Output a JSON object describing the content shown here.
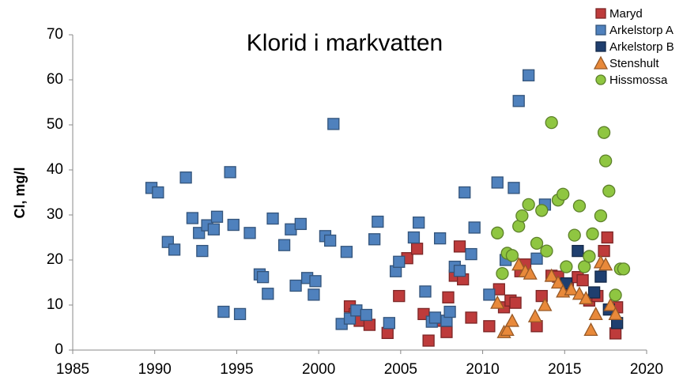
{
  "chart_data": {
    "type": "scatter",
    "title": "Klorid i markvatten",
    "ylabel": "Cl, mg/l",
    "xlim": [
      1985,
      2020
    ],
    "xticks": [
      1985,
      1990,
      1995,
      2000,
      2005,
      2010,
      2015,
      2020
    ],
    "ylim": [
      0,
      70
    ],
    "yticks": [
      0,
      10,
      20,
      30,
      40,
      50,
      60,
      70
    ],
    "grid": false,
    "legend": "top-right",
    "series": [
      {
        "name": "Maryd",
        "color": "#be3b3b",
        "marker": "square",
        "x": [
          2001.9,
          2002.2,
          2002.5,
          2003.1,
          2004.2,
          2004.9,
          2005.4,
          2006.0,
          2006.4,
          2006.7,
          2007.4,
          2007.8,
          2007.9,
          2008.3,
          2008.6,
          2008.8,
          2009.3,
          2010.4,
          2011.0,
          2011.3,
          2011.7,
          2012.0,
          2012.3,
          2012.6,
          2013.3,
          2013.6,
          2014.2,
          2014.6,
          2015.2,
          2015.8,
          2016.1,
          2016.5,
          2017.0,
          2017.4,
          2017.6,
          2018.1,
          2018.2
        ],
        "values": [
          9.7,
          8,
          6.5,
          5.6,
          3.8,
          12,
          20.4,
          22.5,
          8,
          2.1,
          6.5,
          4,
          11.7,
          16.5,
          23,
          15.7,
          7.2,
          5.3,
          13.5,
          9.5,
          11,
          10.5,
          17.5,
          19,
          5.3,
          12,
          16.5,
          16.3,
          14.5,
          16.2,
          15.5,
          11,
          12,
          22,
          25,
          3.7,
          9.5
        ]
      },
      {
        "name": "Arkelstorp A",
        "color": "#4f81bd",
        "marker": "square",
        "x": [
          1989.8,
          1990.2,
          1990.8,
          1991.2,
          1991.9,
          1992.3,
          1992.7,
          1992.9,
          1993.2,
          1993.6,
          1993.8,
          1994.2,
          1994.6,
          1994.8,
          1995.2,
          1995.8,
          1996.4,
          1996.6,
          1996.9,
          1997.2,
          1997.9,
          1998.3,
          1998.6,
          1998.9,
          1999.3,
          1999.7,
          1999.8,
          2000.4,
          2000.7,
          2000.9,
          2001.4,
          2001.7,
          2001.9,
          2002.3,
          2002.9,
          2003.4,
          2003.6,
          2004.3,
          2004.7,
          2004.9,
          2005.8,
          2006.1,
          2006.5,
          2006.9,
          2007.1,
          2007.4,
          2007.8,
          2008.0,
          2008.3,
          2008.6,
          2008.9,
          2009.3,
          2009.5,
          2010.4,
          2010.9,
          2011.4,
          2011.9,
          2012.2,
          2012.8,
          2013.3,
          2013.8
        ],
        "values": [
          36,
          35,
          24,
          22.3,
          38.3,
          29.3,
          26,
          22,
          27.7,
          26.8,
          29.6,
          8.5,
          39.5,
          27.8,
          8,
          26,
          16.8,
          16.2,
          12.5,
          29.2,
          23.3,
          26.8,
          14.3,
          28,
          16,
          12.3,
          15.3,
          25.3,
          24.3,
          50.2,
          5.8,
          21.8,
          7,
          8.8,
          7.8,
          24.6,
          28.5,
          6,
          17.5,
          19.6,
          25,
          28.3,
          13,
          6.3,
          7.2,
          24.8,
          6.5,
          8.5,
          18.5,
          17.6,
          35,
          21.3,
          27.2,
          12.3,
          37.2,
          20,
          36,
          55.3,
          61,
          20.3,
          32.3
        ]
      },
      {
        "name": "Arkelstorp B",
        "color": "#1f3f6f",
        "marker": "square",
        "x": [
          2015.1,
          2015.8,
          2016.8,
          2017.2,
          2017.7,
          2018.2
        ],
        "values": [
          14.8,
          22,
          12.8,
          16.3,
          9,
          6
        ]
      },
      {
        "name": "Stenshult",
        "color": "#e8893a",
        "marker": "triangle",
        "x": [
          2010.9,
          2011.3,
          2011.5,
          2011.8,
          2012.2,
          2012.6,
          2012.9,
          2013.2,
          2013.8,
          2014.2,
          2014.6,
          2014.9,
          2015.4,
          2015.9,
          2016.3,
          2016.6,
          2016.9,
          2017.2,
          2017.5,
          2017.8,
          2018.1
        ],
        "values": [
          10.5,
          4,
          4.5,
          6.5,
          19,
          17.5,
          17,
          7.5,
          10,
          16.5,
          15,
          13,
          13.5,
          12.5,
          11.5,
          4.5,
          8,
          19.5,
          19,
          10,
          8
        ]
      },
      {
        "name": "Hissmossa",
        "color": "#8fc641",
        "marker": "circle",
        "x": [
          2010.9,
          2011.2,
          2011.5,
          2011.8,
          2012.2,
          2012.4,
          2012.8,
          2013.3,
          2013.6,
          2013.9,
          2014.2,
          2014.6,
          2014.9,
          2015.1,
          2015.6,
          2015.9,
          2016.2,
          2016.5,
          2016.7,
          2017.2,
          2017.4,
          2017.5,
          2017.7,
          2018.1,
          2018.4,
          2018.6
        ],
        "values": [
          26,
          17,
          21.5,
          21,
          27.5,
          29.8,
          32.3,
          23.7,
          31,
          22,
          50.5,
          33.3,
          34.6,
          18.5,
          25.5,
          32,
          18.5,
          20.8,
          25.8,
          29.8,
          48.3,
          42,
          35.3,
          12.2,
          18,
          18
        ]
      }
    ]
  }
}
